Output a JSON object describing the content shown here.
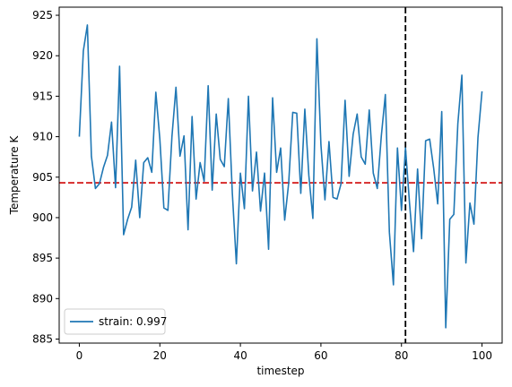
{
  "chart_data": {
    "type": "line",
    "xlabel": "timestep",
    "ylabel": "Temperature K",
    "xlim": [
      -5,
      105
    ],
    "ylim": [
      884.5,
      926.0
    ],
    "xticks": [
      0,
      20,
      40,
      60,
      80,
      100
    ],
    "yticks": [
      885,
      890,
      895,
      900,
      905,
      910,
      915,
      920,
      925
    ],
    "grid": false,
    "legend_position": "lower-left",
    "series": [
      {
        "name": "strain: 0.997",
        "color": "#1f77b4",
        "x": [
          0,
          1,
          2,
          3,
          4,
          5,
          6,
          7,
          8,
          9,
          10,
          11,
          12,
          13,
          14,
          15,
          16,
          17,
          18,
          19,
          20,
          21,
          22,
          23,
          24,
          25,
          26,
          27,
          28,
          29,
          30,
          31,
          32,
          33,
          34,
          35,
          36,
          37,
          38,
          39,
          40,
          41,
          42,
          43,
          44,
          45,
          46,
          47,
          48,
          49,
          50,
          51,
          52,
          53,
          54,
          55,
          56,
          57,
          58,
          59,
          60,
          61,
          62,
          63,
          64,
          65,
          66,
          67,
          68,
          69,
          70,
          71,
          72,
          73,
          74,
          75,
          76,
          77,
          78,
          79,
          80,
          81,
          82,
          83,
          84,
          85,
          86,
          87,
          88,
          89,
          90,
          91,
          92,
          93,
          94,
          95,
          96,
          97,
          98,
          99,
          100
        ],
        "y": [
          910.0,
          920.6,
          923.8,
          907.6,
          903.6,
          904.2,
          906.2,
          907.7,
          911.8,
          903.7,
          918.7,
          897.9,
          899.8,
          901.3,
          907.1,
          900.0,
          906.8,
          907.4,
          905.6,
          915.5,
          909.7,
          901.2,
          900.9,
          910.0,
          916.1,
          907.6,
          910.1,
          898.5,
          912.5,
          902.3,
          906.8,
          904.5,
          916.3,
          903.4,
          912.8,
          907.2,
          906.3,
          914.7,
          903.0,
          894.3,
          905.5,
          901.1,
          915.0,
          903.3,
          908.1,
          900.8,
          905.5,
          896.1,
          914.8,
          905.6,
          908.6,
          899.7,
          904.3,
          913.0,
          912.9,
          903.0,
          913.4,
          905.2,
          899.9,
          922.1,
          909.0,
          902.2,
          909.4,
          902.5,
          902.3,
          904.2,
          914.5,
          905.1,
          910.3,
          912.8,
          907.5,
          906.6,
          913.3,
          905.5,
          903.6,
          910.1,
          915.2,
          898.2,
          891.7,
          908.6,
          900.9,
          908.6,
          901.8,
          895.8,
          906.0,
          897.4,
          909.5,
          909.7,
          906.1,
          901.7,
          913.1,
          886.4,
          899.8,
          900.4,
          911.6,
          917.6,
          894.4,
          901.8,
          899.2,
          909.9,
          915.6
        ]
      }
    ],
    "reference_lines": [
      {
        "orientation": "horizontal",
        "value": 904.3,
        "color": "#d62728",
        "style": "dashed"
      },
      {
        "orientation": "vertical",
        "value": 81,
        "color": "#000000",
        "style": "dashed"
      }
    ]
  }
}
